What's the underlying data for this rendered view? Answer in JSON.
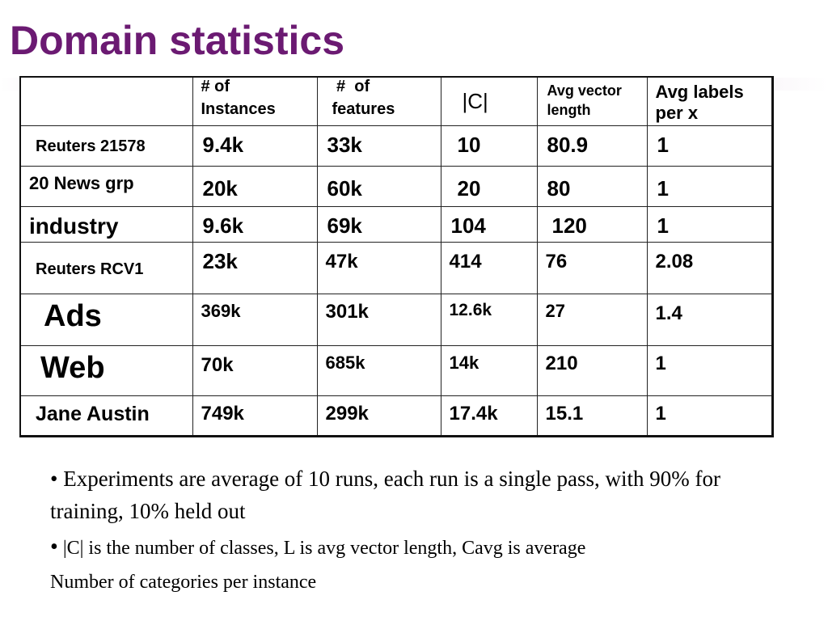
{
  "slide": {
    "title": "Domain statistics"
  },
  "table": {
    "headers": {
      "instances_line1": "#   of",
      "instances_line2": "Instances",
      "features_line1": " #  of",
      "features_line2": "features",
      "classes": "|C|",
      "avg_vector_line1": "Avg vector",
      "avg_vector_line2": "length",
      "avg_labels_line1": "Avg labels",
      "avg_labels_line2": "per x"
    },
    "rows": [
      {
        "dataset": "Reuters 21578",
        "instances": "9.4k",
        "features": "33k",
        "classes": "10",
        "avg_vector": "80.9",
        "avg_labels": "1"
      },
      {
        "dataset": "20 News grp",
        "instances": "20k",
        "features": "60k",
        "classes": "20",
        "avg_vector": "80",
        "avg_labels": "1"
      },
      {
        "dataset": "industry",
        "instances": "9.6k",
        "features": "69k",
        "classes": "104",
        "avg_vector": "120",
        "avg_labels": "1"
      },
      {
        "dataset": "Reuters RCV1",
        "instances": "23k",
        "features": "47k",
        "classes": "414",
        "avg_vector": "76",
        "avg_labels": "2.08"
      },
      {
        "dataset": "Ads",
        "instances": "369k",
        "features": "301k",
        "classes": "12.6k",
        "avg_vector": "27",
        "avg_labels": "1.4"
      },
      {
        "dataset": "Web",
        "instances": "70k",
        "features": "685k",
        "classes": "14k",
        "avg_vector": "210",
        "avg_labels": "1"
      },
      {
        "dataset": "Jane Austin",
        "instances": "749k",
        "features": "299k",
        "classes": "17.4k",
        "avg_vector": "15.1",
        "avg_labels": "1"
      }
    ]
  },
  "notes": {
    "bullet": "•",
    "note1": "Experiments are average of 10 runs, each run is a single pass, with 90% for training, 10% held out",
    "note2_line1": "|C| is the number of classes, L is avg vector length, Cavg is average",
    "note2_line2": "Number of categories per instance"
  }
}
